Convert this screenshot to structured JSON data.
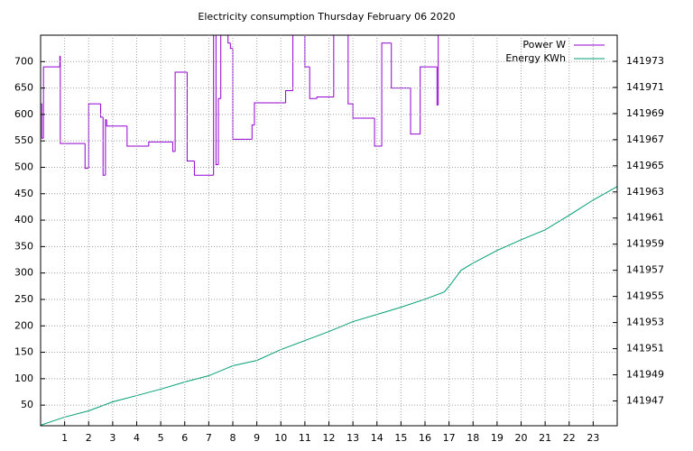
{
  "chart_data": {
    "type": "line",
    "title": "Electricity consumption Thursday February 06 2020",
    "xlim": [
      0,
      24
    ],
    "xticks": [
      1,
      2,
      3,
      4,
      5,
      6,
      7,
      8,
      9,
      10,
      11,
      12,
      13,
      14,
      15,
      16,
      17,
      18,
      19,
      20,
      21,
      22,
      23
    ],
    "ylim": [
      11,
      750
    ],
    "yticks": [
      50,
      100,
      150,
      200,
      250,
      300,
      350,
      400,
      450,
      500,
      550,
      600,
      650,
      700
    ],
    "y2lim": [
      141945.1,
      141975
    ],
    "y2ticks": [
      141947,
      141949,
      141951,
      141953,
      141955,
      141957,
      141959,
      141961,
      141963,
      141965,
      141967,
      141969,
      141971,
      141973
    ],
    "grid": true,
    "legend": "top-right",
    "series": [
      {
        "name": "Power W",
        "color": "#9400d3",
        "step": true,
        "x": [
          0,
          0.05,
          0.12,
          0.8,
          0.82,
          1.85,
          2.0,
          2.5,
          2.6,
          2.7,
          2.75,
          3.6,
          4.5,
          5.5,
          5.6,
          6.1,
          6.4,
          7.2,
          7.3,
          7.4,
          7.5,
          7.8,
          7.9,
          8.0,
          8.8,
          8.9,
          9.5,
          10.2,
          10.5,
          11.0,
          11.2,
          11.5,
          12.2,
          12.5,
          12.8,
          13.0,
          13.3,
          13.9,
          14.2,
          14.6,
          15.4,
          15.8,
          16.1,
          16.5,
          16.55,
          16.6
        ],
        "values": [
          620,
          555,
          690,
          710,
          545,
          498,
          620,
          595,
          485,
          590,
          578,
          540,
          548,
          530,
          680,
          512,
          485,
          750,
          505,
          630,
          750,
          735,
          725,
          553,
          580,
          622,
          622,
          645,
          750,
          690,
          630,
          633,
          750,
          750,
          620,
          593,
          593,
          540,
          735,
          650,
          563,
          690,
          690,
          618,
          750,
          750
        ]
      },
      {
        "name": "Energy KWh",
        "color": "#009e73",
        "axis": "y2",
        "x": [
          0,
          1,
          2,
          3,
          4,
          5,
          6,
          7,
          8,
          9,
          10,
          11,
          12,
          13,
          14,
          15,
          16,
          16.8,
          17,
          17.5,
          18,
          19,
          20,
          21,
          22,
          23,
          24
        ],
        "values": [
          141945.14,
          141945.76,
          141946.24,
          141946.93,
          141947.41,
          141947.9,
          141948.45,
          141948.93,
          141949.69,
          141950.1,
          141950.93,
          141951.62,
          141952.31,
          141953.07,
          141953.62,
          141954.17,
          141954.79,
          141955.34,
          141955.76,
          141957.0,
          141957.55,
          141958.52,
          141959.34,
          141960.1,
          141961.21,
          141962.38,
          141963.41
        ]
      }
    ]
  }
}
